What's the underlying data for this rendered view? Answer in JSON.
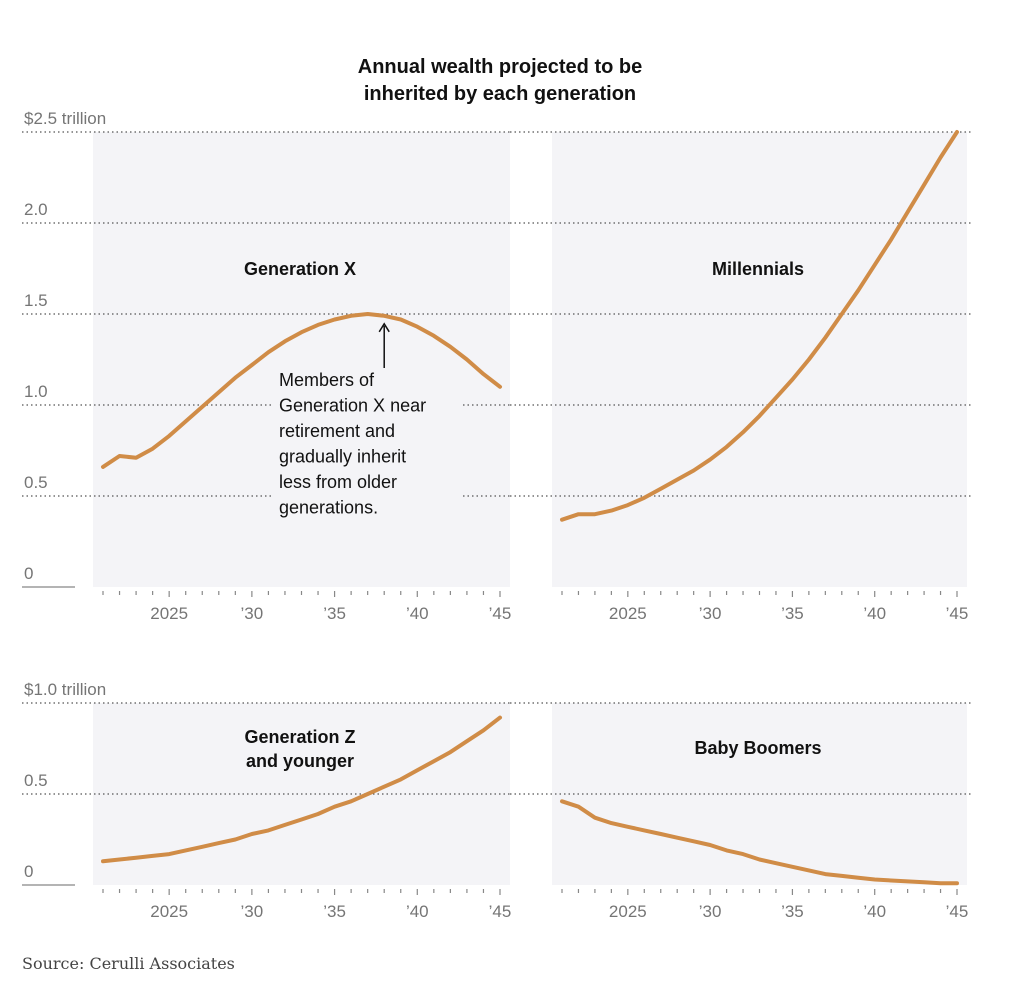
{
  "title": [
    "Annual wealth projected to be",
    "inherited by each generation"
  ],
  "source": "Source: Cerulli Associates",
  "colors": {
    "line": "#d08c47",
    "panel_bg": "#f4f4f7",
    "grid": "#555555",
    "text": "#111111",
    "tick_text": "#757575"
  },
  "chart_data": [
    {
      "type": "line",
      "label": "Generation X",
      "units_label": "$2.5 trillion",
      "ylim": [
        0,
        2.5
      ],
      "yticks": [
        0,
        0.5,
        1.0,
        1.5,
        2.0,
        2.5
      ],
      "ytick_labels": [
        "0",
        "0.5",
        "1.0",
        "1.5",
        "2.0",
        "$2.5 trillion"
      ],
      "xlim": [
        2021,
        2045
      ],
      "xticks": [
        2025,
        2030,
        2035,
        2040,
        2045
      ],
      "xtick_labels": [
        "2025",
        "’30",
        "’35",
        "’40",
        "’45"
      ],
      "annotation": {
        "lines": [
          "Members of",
          "Generation X near",
          "retirement and",
          "gradually inherit",
          "less from older",
          "generations."
        ],
        "target": [
          2038,
          1.49
        ]
      },
      "x": [
        2021,
        2022,
        2023,
        2024,
        2025,
        2026,
        2027,
        2028,
        2029,
        2030,
        2031,
        2032,
        2033,
        2034,
        2035,
        2036,
        2037,
        2038,
        2039,
        2040,
        2041,
        2042,
        2043,
        2044,
        2045
      ],
      "y": [
        0.66,
        0.72,
        0.71,
        0.76,
        0.83,
        0.91,
        0.99,
        1.07,
        1.15,
        1.22,
        1.29,
        1.35,
        1.4,
        1.44,
        1.47,
        1.49,
        1.5,
        1.49,
        1.47,
        1.43,
        1.38,
        1.32,
        1.25,
        1.17,
        1.1
      ]
    },
    {
      "type": "line",
      "label": "Millennials",
      "ylim": [
        0,
        2.5
      ],
      "yticks": [
        0,
        0.5,
        1.0,
        1.5,
        2.0,
        2.5
      ],
      "xlim": [
        2021,
        2045
      ],
      "xticks": [
        2025,
        2030,
        2035,
        2040,
        2045
      ],
      "xtick_labels": [
        "2025",
        "’30",
        "’35",
        "’40",
        "’45"
      ],
      "x": [
        2021,
        2022,
        2023,
        2024,
        2025,
        2026,
        2027,
        2028,
        2029,
        2030,
        2031,
        2032,
        2033,
        2034,
        2035,
        2036,
        2037,
        2038,
        2039,
        2040,
        2041,
        2042,
        2043,
        2044,
        2045
      ],
      "y": [
        0.37,
        0.4,
        0.4,
        0.42,
        0.45,
        0.49,
        0.54,
        0.59,
        0.64,
        0.7,
        0.77,
        0.85,
        0.94,
        1.04,
        1.14,
        1.25,
        1.37,
        1.5,
        1.63,
        1.77,
        1.91,
        2.06,
        2.21,
        2.36,
        2.5
      ]
    },
    {
      "type": "line",
      "label": "Generation Z\nand younger",
      "units_label": "$1.0 trillion",
      "ylim": [
        0,
        1.0
      ],
      "yticks": [
        0,
        0.5,
        1.0
      ],
      "ytick_labels": [
        "0",
        "0.5",
        "$1.0 trillion"
      ],
      "xlim": [
        2021,
        2045
      ],
      "xticks": [
        2025,
        2030,
        2035,
        2040,
        2045
      ],
      "xtick_labels": [
        "2025",
        "’30",
        "’35",
        "’40",
        "’45"
      ],
      "x": [
        2021,
        2022,
        2023,
        2024,
        2025,
        2026,
        2027,
        2028,
        2029,
        2030,
        2031,
        2032,
        2033,
        2034,
        2035,
        2036,
        2037,
        2038,
        2039,
        2040,
        2041,
        2042,
        2043,
        2044,
        2045
      ],
      "y": [
        0.13,
        0.14,
        0.15,
        0.16,
        0.17,
        0.19,
        0.21,
        0.23,
        0.25,
        0.28,
        0.3,
        0.33,
        0.36,
        0.39,
        0.43,
        0.46,
        0.5,
        0.54,
        0.58,
        0.63,
        0.68,
        0.73,
        0.79,
        0.85,
        0.92
      ]
    },
    {
      "type": "line",
      "label": "Baby Boomers",
      "ylim": [
        0,
        1.0
      ],
      "yticks": [
        0,
        0.5,
        1.0
      ],
      "xlim": [
        2021,
        2045
      ],
      "xticks": [
        2025,
        2030,
        2035,
        2040,
        2045
      ],
      "xtick_labels": [
        "2025",
        "’30",
        "’35",
        "’40",
        "’45"
      ],
      "x": [
        2021,
        2022,
        2023,
        2024,
        2025,
        2026,
        2027,
        2028,
        2029,
        2030,
        2031,
        2032,
        2033,
        2034,
        2035,
        2036,
        2037,
        2038,
        2039,
        2040,
        2041,
        2042,
        2043,
        2044,
        2045
      ],
      "y": [
        0.46,
        0.43,
        0.37,
        0.34,
        0.32,
        0.3,
        0.28,
        0.26,
        0.24,
        0.22,
        0.19,
        0.17,
        0.14,
        0.12,
        0.1,
        0.08,
        0.06,
        0.05,
        0.04,
        0.03,
        0.025,
        0.02,
        0.015,
        0.01,
        0.01
      ]
    }
  ]
}
